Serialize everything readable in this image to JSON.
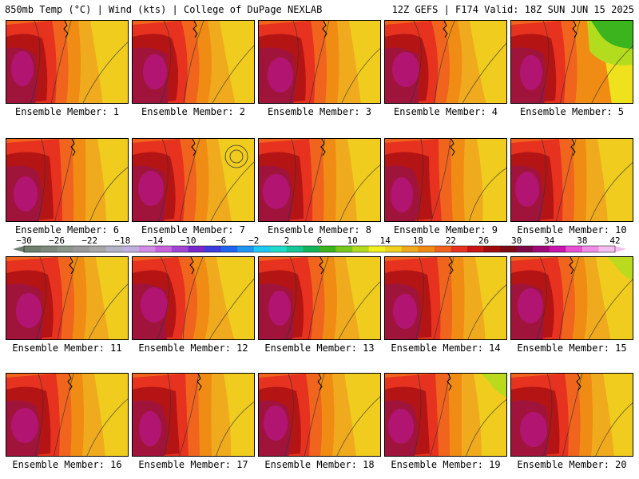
{
  "header": {
    "left": "850mb Temp (°C) | Wind (kts) | College of DuPage NEXLAB",
    "right": "12Z GEFS | F174 Valid: 18Z SUN JUN 15 2025"
  },
  "member_label_prefix": "Ensemble Member: ",
  "members": [
    {
      "label": "Ensemble Member: 1",
      "number": 1,
      "variant": 0
    },
    {
      "label": "Ensemble Member: 2",
      "number": 2,
      "variant": 1
    },
    {
      "label": "Ensemble Member: 3",
      "number": 3,
      "variant": 2
    },
    {
      "label": "Ensemble Member: 4",
      "number": 4,
      "variant": 3
    },
    {
      "label": "Ensemble Member: 5",
      "number": 5,
      "variant": 4
    },
    {
      "label": "Ensemble Member: 6",
      "number": 6,
      "variant": 5
    },
    {
      "label": "Ensemble Member: 7",
      "number": 7,
      "variant": 6
    },
    {
      "label": "Ensemble Member: 8",
      "number": 8,
      "variant": 7
    },
    {
      "label": "Ensemble Member: 9",
      "number": 9,
      "variant": 8
    },
    {
      "label": "Ensemble Member: 10",
      "number": 10,
      "variant": 9
    },
    {
      "label": "Ensemble Member: 11",
      "number": 11,
      "variant": 10
    },
    {
      "label": "Ensemble Member: 12",
      "number": 12,
      "variant": 11
    },
    {
      "label": "Ensemble Member: 13",
      "number": 13,
      "variant": 12
    },
    {
      "label": "Ensemble Member: 14",
      "number": 14,
      "variant": 13
    },
    {
      "label": "Ensemble Member: 15",
      "number": 15,
      "variant": 14
    },
    {
      "label": "Ensemble Member: 16",
      "number": 16,
      "variant": 15
    },
    {
      "label": "Ensemble Member: 17",
      "number": 17,
      "variant": 16
    },
    {
      "label": "Ensemble Member: 18",
      "number": 18,
      "variant": 17
    },
    {
      "label": "Ensemble Member: 19",
      "number": 19,
      "variant": 18
    },
    {
      "label": "Ensemble Member: 20",
      "number": 20,
      "variant": 19
    }
  ],
  "colorbar": {
    "tick_labels": [
      "−30",
      "−26",
      "−22",
      "−18",
      "−14",
      "−10",
      "−6",
      "−2",
      "2",
      "6",
      "10",
      "14",
      "18",
      "22",
      "26",
      "30",
      "34",
      "38",
      "42"
    ],
    "colors": [
      "#6e7f6e",
      "#7d8a7d",
      "#8c968c",
      "#9b9b9b",
      "#a8a8a8",
      "#b3b3c8",
      "#c0b0e0",
      "#d28ce6",
      "#c864dc",
      "#a046d2",
      "#7828c8",
      "#3c3cdc",
      "#1e64f0",
      "#1e96f0",
      "#1ec8f0",
      "#1edcc8",
      "#14c896",
      "#14b45a",
      "#3cb41e",
      "#78c81e",
      "#b4dc1e",
      "#f0f01e",
      "#f0d21e",
      "#f0aa1e",
      "#f08c14",
      "#f0641e",
      "#e6321e",
      "#c81414",
      "#a00a0a",
      "#7d0a14",
      "#7d0a46",
      "#a00a78",
      "#c814aa",
      "#e650d2",
      "#f08ce6",
      "#f5bef0"
    ]
  },
  "palette": {
    "warm_deep": "#a0143c",
    "magenta": "#b41478",
    "dark_red": "#b41414",
    "red": "#e6321e",
    "orange_red": "#f0641e",
    "orange": "#f08c14",
    "light_orange": "#f0aa1e",
    "yellow_orange": "#f0d21e",
    "yellow": "#f0f01e",
    "green": "#3cb41e",
    "light_green": "#b4dc1e"
  }
}
